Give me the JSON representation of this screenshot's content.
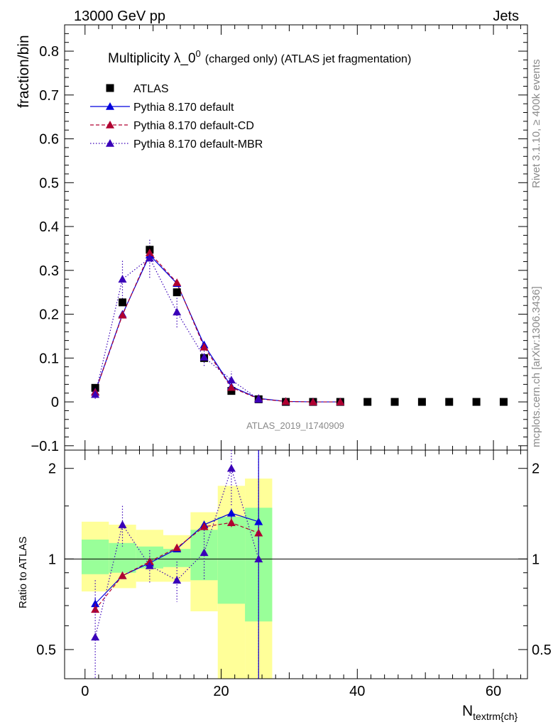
{
  "header": {
    "left": "13000 GeV pp",
    "right": "Jets"
  },
  "side_labels": {
    "rivet": "Rivet 3.1.10, ≥ 400k events",
    "mcplots": "mcplots.cern.ch [arXiv:1306.3436]"
  },
  "watermark": "ATLAS_2019_I1740909",
  "chart_data": [
    {
      "type": "scatter",
      "panel": "main",
      "title": "Multiplicity λ_0",
      "title_superscript": "0",
      "subtitle": "(charged only) (ATLAS jet fragmentation)",
      "ylabel": "fraction/bin",
      "xlabel": "N",
      "xlabel_subscript": "textrm{ch}",
      "xlim": [
        -3,
        65
      ],
      "ylim": [
        -0.11,
        0.86
      ],
      "y_ticks": [
        "−0.1",
        "0",
        "0.1",
        "0.2",
        "0.3",
        "0.4",
        "0.5",
        "0.6",
        "0.7",
        "0.8"
      ],
      "legend_position": "top-left",
      "series": [
        {
          "name": "ATLAS",
          "color": "#000000",
          "marker": "square",
          "x": [
            1.5,
            5.5,
            9.5,
            13.5,
            17.5,
            21.5,
            25.5,
            29.5,
            33.5,
            37.5,
            41.5,
            45.5,
            49.5,
            53.5,
            57.5,
            61.5
          ],
          "y": [
            0.032,
            0.227,
            0.347,
            0.25,
            0.1,
            0.025,
            0.006,
            0.0,
            0.0,
            0.0,
            0.0,
            0.0,
            0.0,
            0.0,
            0.0,
            0.0
          ]
        },
        {
          "name": "Pythia 8.170 default",
          "color": "#0000dd",
          "style": "solid",
          "marker": "triangle",
          "x": [
            1.5,
            5.5,
            9.5,
            13.5,
            17.5,
            21.5,
            25.5,
            29.5,
            33.5,
            37.5
          ],
          "y": [
            0.023,
            0.2,
            0.335,
            0.27,
            0.13,
            0.035,
            0.008,
            0.001,
            0.0,
            0.0
          ],
          "yerr": [
            0.002,
            0.004,
            0.005,
            0.004,
            0.003,
            0.002,
            0.001,
            0.0,
            0.0,
            0.0
          ]
        },
        {
          "name": "Pythia 8.170 default-CD",
          "color": "#b00030",
          "style": "dashed",
          "marker": "triangle",
          "x": [
            1.5,
            5.5,
            9.5,
            13.5,
            17.5,
            21.5,
            25.5,
            29.5,
            33.5,
            37.5
          ],
          "y": [
            0.022,
            0.198,
            0.34,
            0.272,
            0.125,
            0.033,
            0.007,
            0.001,
            0.0,
            0.0
          ],
          "yerr": [
            0.002,
            0.004,
            0.005,
            0.004,
            0.003,
            0.002,
            0.001,
            0.0,
            0.0,
            0.0
          ]
        },
        {
          "name": "Pythia 8.170 default-MBR",
          "color": "#3a00b8",
          "style": "dotted",
          "marker": "triangle",
          "x": [
            1.5,
            5.5,
            9.5,
            13.5,
            17.5,
            21.5,
            25.5
          ],
          "y": [
            0.017,
            0.28,
            0.328,
            0.205,
            0.102,
            0.05,
            0.006
          ],
          "yerr": [
            0.01,
            0.045,
            0.045,
            0.035,
            0.02,
            0.02,
            0.004
          ]
        }
      ]
    },
    {
      "type": "scatter",
      "panel": "ratio",
      "ylabel": "Ratio to ATLAS",
      "xlim": [
        -3,
        65
      ],
      "ylim": [
        0.4,
        2.3
      ],
      "y_scale": "log",
      "y_ticks": [
        "0.5",
        "1",
        "2"
      ],
      "x_ticks": [
        "0",
        "20",
        "40",
        "60"
      ],
      "reference_line": 1,
      "bands": [
        {
          "x0": -0.5,
          "x1": 3.5,
          "inner": [
            0.89,
            1.16
          ],
          "outer": [
            0.78,
            1.33
          ]
        },
        {
          "x0": 3.5,
          "x1": 7.5,
          "inner": [
            0.9,
            1.13
          ],
          "outer": [
            0.8,
            1.3
          ]
        },
        {
          "x0": 7.5,
          "x1": 11.5,
          "inner": [
            0.93,
            1.1
          ],
          "outer": [
            0.84,
            1.25
          ]
        },
        {
          "x0": 11.5,
          "x1": 15.5,
          "inner": [
            0.94,
            1.08
          ],
          "outer": [
            0.84,
            1.2
          ]
        },
        {
          "x0": 15.5,
          "x1": 19.5,
          "inner": [
            0.85,
            1.25
          ],
          "outer": [
            0.67,
            1.43
          ]
        },
        {
          "x0": 19.5,
          "x1": 23.5,
          "inner": [
            0.71,
            1.38
          ],
          "outer": [
            0.4,
            1.75
          ]
        },
        {
          "x0": 23.5,
          "x1": 27.5,
          "inner": [
            0.62,
            1.48
          ],
          "outer": [
            0.4,
            1.85
          ]
        }
      ],
      "band_colors": {
        "inner": "#99ff99",
        "outer": "#ffff99"
      },
      "series": [
        {
          "name": "Pythia 8.170 default",
          "color": "#0000dd",
          "style": "solid",
          "x": [
            1.5,
            5.5,
            9.5,
            13.5,
            17.5,
            21.5,
            25.5
          ],
          "y": [
            0.71,
            0.88,
            0.97,
            1.08,
            1.3,
            1.42,
            1.33
          ],
          "yerr": [
            0.03,
            0.02,
            0.02,
            0.02,
            0.03,
            0.05,
            1.2
          ]
        },
        {
          "name": "Pythia 8.170 default-CD",
          "color": "#b00030",
          "style": "dashed",
          "x": [
            1.5,
            5.5,
            9.5,
            13.5,
            17.5,
            21.5,
            25.5
          ],
          "y": [
            0.68,
            0.88,
            0.98,
            1.09,
            1.28,
            1.32,
            1.22
          ],
          "yerr": [
            0.03,
            0.02,
            0.02,
            0.02,
            0.03,
            0.05,
            0.05
          ]
        },
        {
          "name": "Pythia 8.170 default-MBR",
          "color": "#3a00b8",
          "style": "dotted",
          "x": [
            1.5,
            5.5,
            9.5,
            13.5,
            17.5,
            21.5,
            25.5
          ],
          "y": [
            0.55,
            1.3,
            0.95,
            0.85,
            1.05,
            2.0,
            1.0
          ],
          "yerr": [
            0.3,
            0.2,
            0.12,
            0.13,
            0.2,
            0.5,
            1.5
          ]
        }
      ]
    }
  ]
}
